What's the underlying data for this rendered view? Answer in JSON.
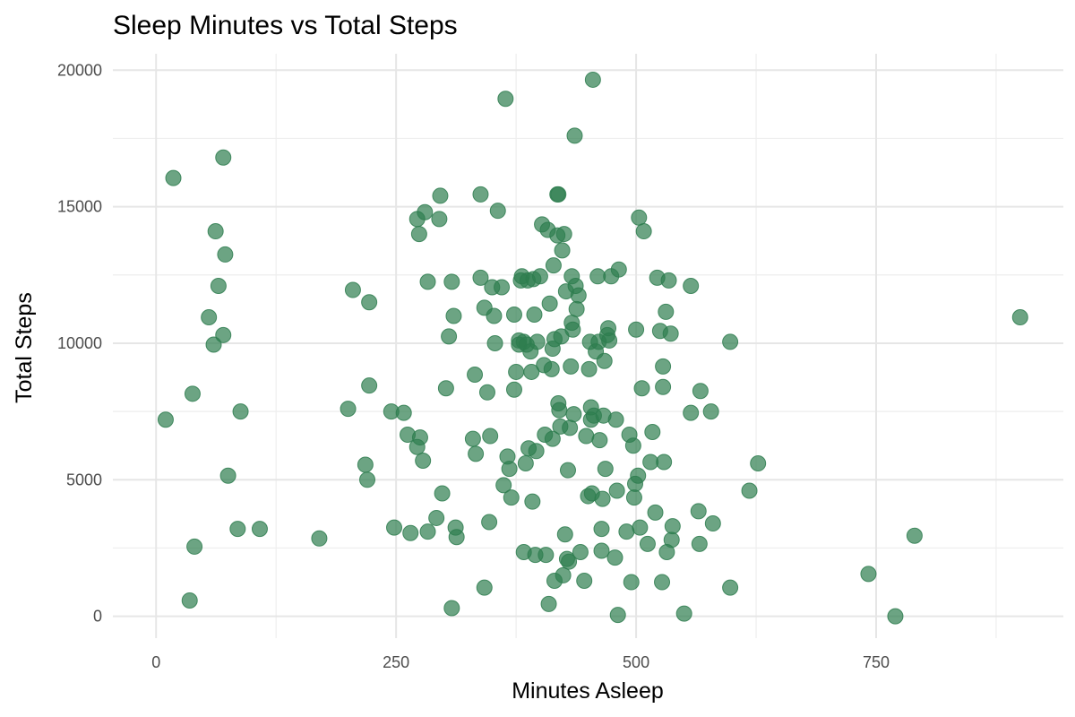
{
  "chart_data": {
    "type": "scatter",
    "title": "Sleep Minutes vs Total Steps",
    "xlabel": "Minutes Asleep",
    "ylabel": "Total Steps",
    "xlim": [
      -45,
      945
    ],
    "ylim": [
      -800,
      20600
    ],
    "x_ticks": [
      0,
      250,
      500,
      750
    ],
    "x_tick_labels": [
      "0",
      "250",
      "500",
      "750"
    ],
    "y_ticks": [
      0,
      5000,
      10000,
      15000,
      20000
    ],
    "y_tick_labels": [
      "0",
      "5000",
      "10000",
      "15000",
      "20000"
    ],
    "grid": true,
    "point_color": "#2e7d4f",
    "points": [
      [
        10,
        7200
      ],
      [
        18,
        16050
      ],
      [
        35,
        580
      ],
      [
        38,
        8150
      ],
      [
        40,
        2550
      ],
      [
        55,
        10950
      ],
      [
        60,
        9950
      ],
      [
        62,
        14100
      ],
      [
        65,
        12100
      ],
      [
        70,
        16800
      ],
      [
        70,
        10300
      ],
      [
        72,
        13250
      ],
      [
        75,
        5150
      ],
      [
        85,
        3200
      ],
      [
        88,
        7500
      ],
      [
        108,
        3200
      ],
      [
        170,
        2850
      ],
      [
        200,
        7600
      ],
      [
        205,
        11950
      ],
      [
        218,
        5550
      ],
      [
        220,
        5000
      ],
      [
        222,
        8450
      ],
      [
        222,
        11500
      ],
      [
        245,
        7500
      ],
      [
        248,
        3250
      ],
      [
        258,
        7450
      ],
      [
        262,
        6650
      ],
      [
        265,
        3050
      ],
      [
        272,
        6200
      ],
      [
        272,
        14550
      ],
      [
        274,
        14000
      ],
      [
        275,
        6550
      ],
      [
        278,
        5700
      ],
      [
        280,
        14800
      ],
      [
        283,
        3100
      ],
      [
        283,
        12250
      ],
      [
        292,
        3600
      ],
      [
        295,
        14550
      ],
      [
        296,
        15400
      ],
      [
        298,
        4500
      ],
      [
        302,
        8350
      ],
      [
        305,
        10250
      ],
      [
        308,
        12250
      ],
      [
        308,
        300
      ],
      [
        310,
        11000
      ],
      [
        312,
        3250
      ],
      [
        313,
        2900
      ],
      [
        330,
        6500
      ],
      [
        332,
        8850
      ],
      [
        333,
        5950
      ],
      [
        338,
        12400
      ],
      [
        338,
        15450
      ],
      [
        342,
        11300
      ],
      [
        342,
        1050
      ],
      [
        345,
        8200
      ],
      [
        347,
        3450
      ],
      [
        348,
        6600
      ],
      [
        350,
        12050
      ],
      [
        352,
        11000
      ],
      [
        353,
        10000
      ],
      [
        356,
        14850
      ],
      [
        360,
        12050
      ],
      [
        362,
        4800
      ],
      [
        364,
        18950
      ],
      [
        366,
        5850
      ],
      [
        368,
        5400
      ],
      [
        370,
        4350
      ],
      [
        373,
        11050
      ],
      [
        373,
        8300
      ],
      [
        375,
        8950
      ],
      [
        378,
        10100
      ],
      [
        378,
        9950
      ],
      [
        380,
        12300
      ],
      [
        381,
        12450
      ],
      [
        383,
        10050
      ],
      [
        383,
        2350
      ],
      [
        385,
        5600
      ],
      [
        386,
        9950
      ],
      [
        387,
        12300
      ],
      [
        388,
        6150
      ],
      [
        390,
        9700
      ],
      [
        391,
        8950
      ],
      [
        392,
        4200
      ],
      [
        393,
        12350
      ],
      [
        394,
        11050
      ],
      [
        395,
        2250
      ],
      [
        396,
        6050
      ],
      [
        397,
        10050
      ],
      [
        400,
        12450
      ],
      [
        402,
        14350
      ],
      [
        404,
        9200
      ],
      [
        405,
        6650
      ],
      [
        406,
        2250
      ],
      [
        408,
        14150
      ],
      [
        409,
        450
      ],
      [
        410,
        11450
      ],
      [
        412,
        9050
      ],
      [
        413,
        9800
      ],
      [
        413,
        6500
      ],
      [
        414,
        12850
      ],
      [
        415,
        10150
      ],
      [
        415,
        1300
      ],
      [
        418,
        13950
      ],
      [
        418,
        15450
      ],
      [
        419,
        15450
      ],
      [
        419,
        7800
      ],
      [
        420,
        7550
      ],
      [
        421,
        6950
      ],
      [
        422,
        10250
      ],
      [
        423,
        13400
      ],
      [
        424,
        1500
      ],
      [
        425,
        14000
      ],
      [
        426,
        3000
      ],
      [
        427,
        11900
      ],
      [
        428,
        2100
      ],
      [
        429,
        5350
      ],
      [
        430,
        2000
      ],
      [
        431,
        6900
      ],
      [
        432,
        9150
      ],
      [
        433,
        10750
      ],
      [
        433,
        12450
      ],
      [
        434,
        10500
      ],
      [
        435,
        7400
      ],
      [
        436,
        17600
      ],
      [
        437,
        12100
      ],
      [
        438,
        11250
      ],
      [
        440,
        11750
      ],
      [
        442,
        2350
      ],
      [
        446,
        1300
      ],
      [
        448,
        6600
      ],
      [
        450,
        4400
      ],
      [
        451,
        9050
      ],
      [
        452,
        10050
      ],
      [
        453,
        7650
      ],
      [
        453,
        7200
      ],
      [
        454,
        4500
      ],
      [
        455,
        19650
      ],
      [
        456,
        7350
      ],
      [
        458,
        9700
      ],
      [
        460,
        12450
      ],
      [
        461,
        10050
      ],
      [
        462,
        6450
      ],
      [
        464,
        3200
      ],
      [
        464,
        2400
      ],
      [
        465,
        4300
      ],
      [
        466,
        7350
      ],
      [
        467,
        9350
      ],
      [
        468,
        5400
      ],
      [
        470,
        10300
      ],
      [
        471,
        10550
      ],
      [
        472,
        10100
      ],
      [
        474,
        12450
      ],
      [
        478,
        2150
      ],
      [
        479,
        7200
      ],
      [
        480,
        4600
      ],
      [
        481,
        50
      ],
      [
        482,
        12700
      ],
      [
        490,
        3100
      ],
      [
        493,
        6650
      ],
      [
        495,
        1250
      ],
      [
        497,
        6250
      ],
      [
        498,
        4350
      ],
      [
        499,
        4850
      ],
      [
        500,
        10500
      ],
      [
        502,
        5150
      ],
      [
        503,
        14600
      ],
      [
        504,
        3250
      ],
      [
        506,
        8350
      ],
      [
        508,
        14100
      ],
      [
        512,
        2650
      ],
      [
        515,
        5650
      ],
      [
        517,
        6750
      ],
      [
        520,
        3800
      ],
      [
        522,
        12400
      ],
      [
        525,
        10450
      ],
      [
        527,
        1250
      ],
      [
        528,
        9150
      ],
      [
        528,
        8400
      ],
      [
        529,
        5650
      ],
      [
        531,
        11150
      ],
      [
        532,
        2350
      ],
      [
        534,
        12300
      ],
      [
        536,
        10350
      ],
      [
        537,
        2800
      ],
      [
        538,
        3300
      ],
      [
        565,
        3850
      ],
      [
        566,
        2650
      ],
      [
        567,
        8250
      ],
      [
        578,
        7500
      ],
      [
        580,
        3400
      ],
      [
        557,
        12100
      ],
      [
        557,
        7450
      ],
      [
        550,
        100
      ],
      [
        598,
        10050
      ],
      [
        598,
        1050
      ],
      [
        618,
        4600
      ],
      [
        627,
        5600
      ],
      [
        742,
        1550
      ],
      [
        770,
        0
      ],
      [
        790,
        2950
      ],
      [
        900,
        10950
      ]
    ]
  }
}
